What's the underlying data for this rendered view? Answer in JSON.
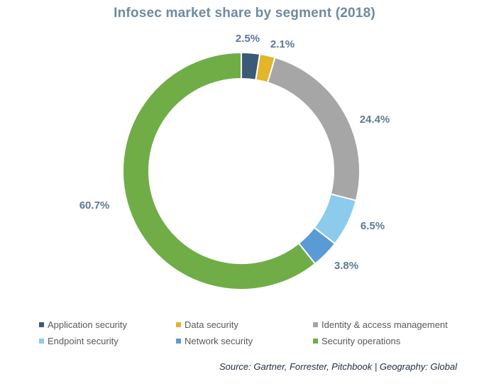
{
  "chart_data": {
    "type": "pie",
    "variant": "donut",
    "title": "Infosec market share by segment (2018)",
    "slices": [
      {
        "label": "Application security",
        "value": 2.5,
        "display": "2.5%",
        "color": "#3b5a78"
      },
      {
        "label": "Data security",
        "value": 2.1,
        "display": "2.1%",
        "color": "#e2b52a"
      },
      {
        "label": "Identity & access management",
        "value": 24.4,
        "display": "24.4%",
        "color": "#a6a6a6"
      },
      {
        "label": "Endpoint security",
        "value": 6.5,
        "display": "6.5%",
        "color": "#8ccbec"
      },
      {
        "label": "Network security",
        "value": 3.8,
        "display": "3.8%",
        "color": "#5b9bd5"
      },
      {
        "label": "Security operations",
        "value": 60.7,
        "display": "60.7%",
        "color": "#70ad47"
      }
    ],
    "legend_position": "bottom",
    "label_color": "#5b7a95"
  },
  "source_note": "Source: Gartner, Forrester, Pitchbook | Geography: Global"
}
